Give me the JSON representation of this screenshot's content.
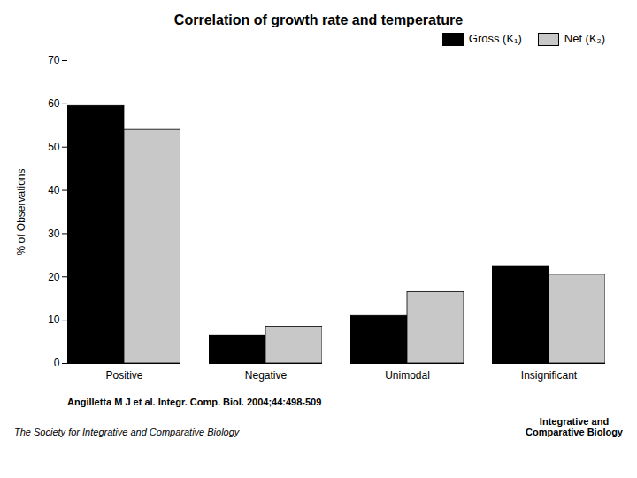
{
  "chart_data": {
    "type": "bar",
    "title": "Correlation of growth rate and temperature",
    "ylabel": "% of Observations",
    "categories": [
      "Positive",
      "Negative",
      "Unimodal",
      "Insignificant"
    ],
    "series": [
      {
        "name": "Gross (K₁)",
        "color": "#000000",
        "values": [
          59.5,
          6.5,
          11.0,
          22.5
        ]
      },
      {
        "name": "Net (K₂)",
        "color": "#c8c8c8",
        "values": [
          54.0,
          8.5,
          16.5,
          20.5
        ]
      }
    ],
    "ylim": [
      0,
      70
    ],
    "yticks": [
      0,
      10,
      20,
      30,
      40,
      50,
      60,
      70
    ],
    "grid": false,
    "legend": "upper right",
    "annotations": [
      "Angilletta M J et al. Integr. Comp. Biol. 2004;44:498-509",
      "The Society for Integrative and Comparative Biology",
      "Integrative and\nComparative Biology"
    ]
  }
}
